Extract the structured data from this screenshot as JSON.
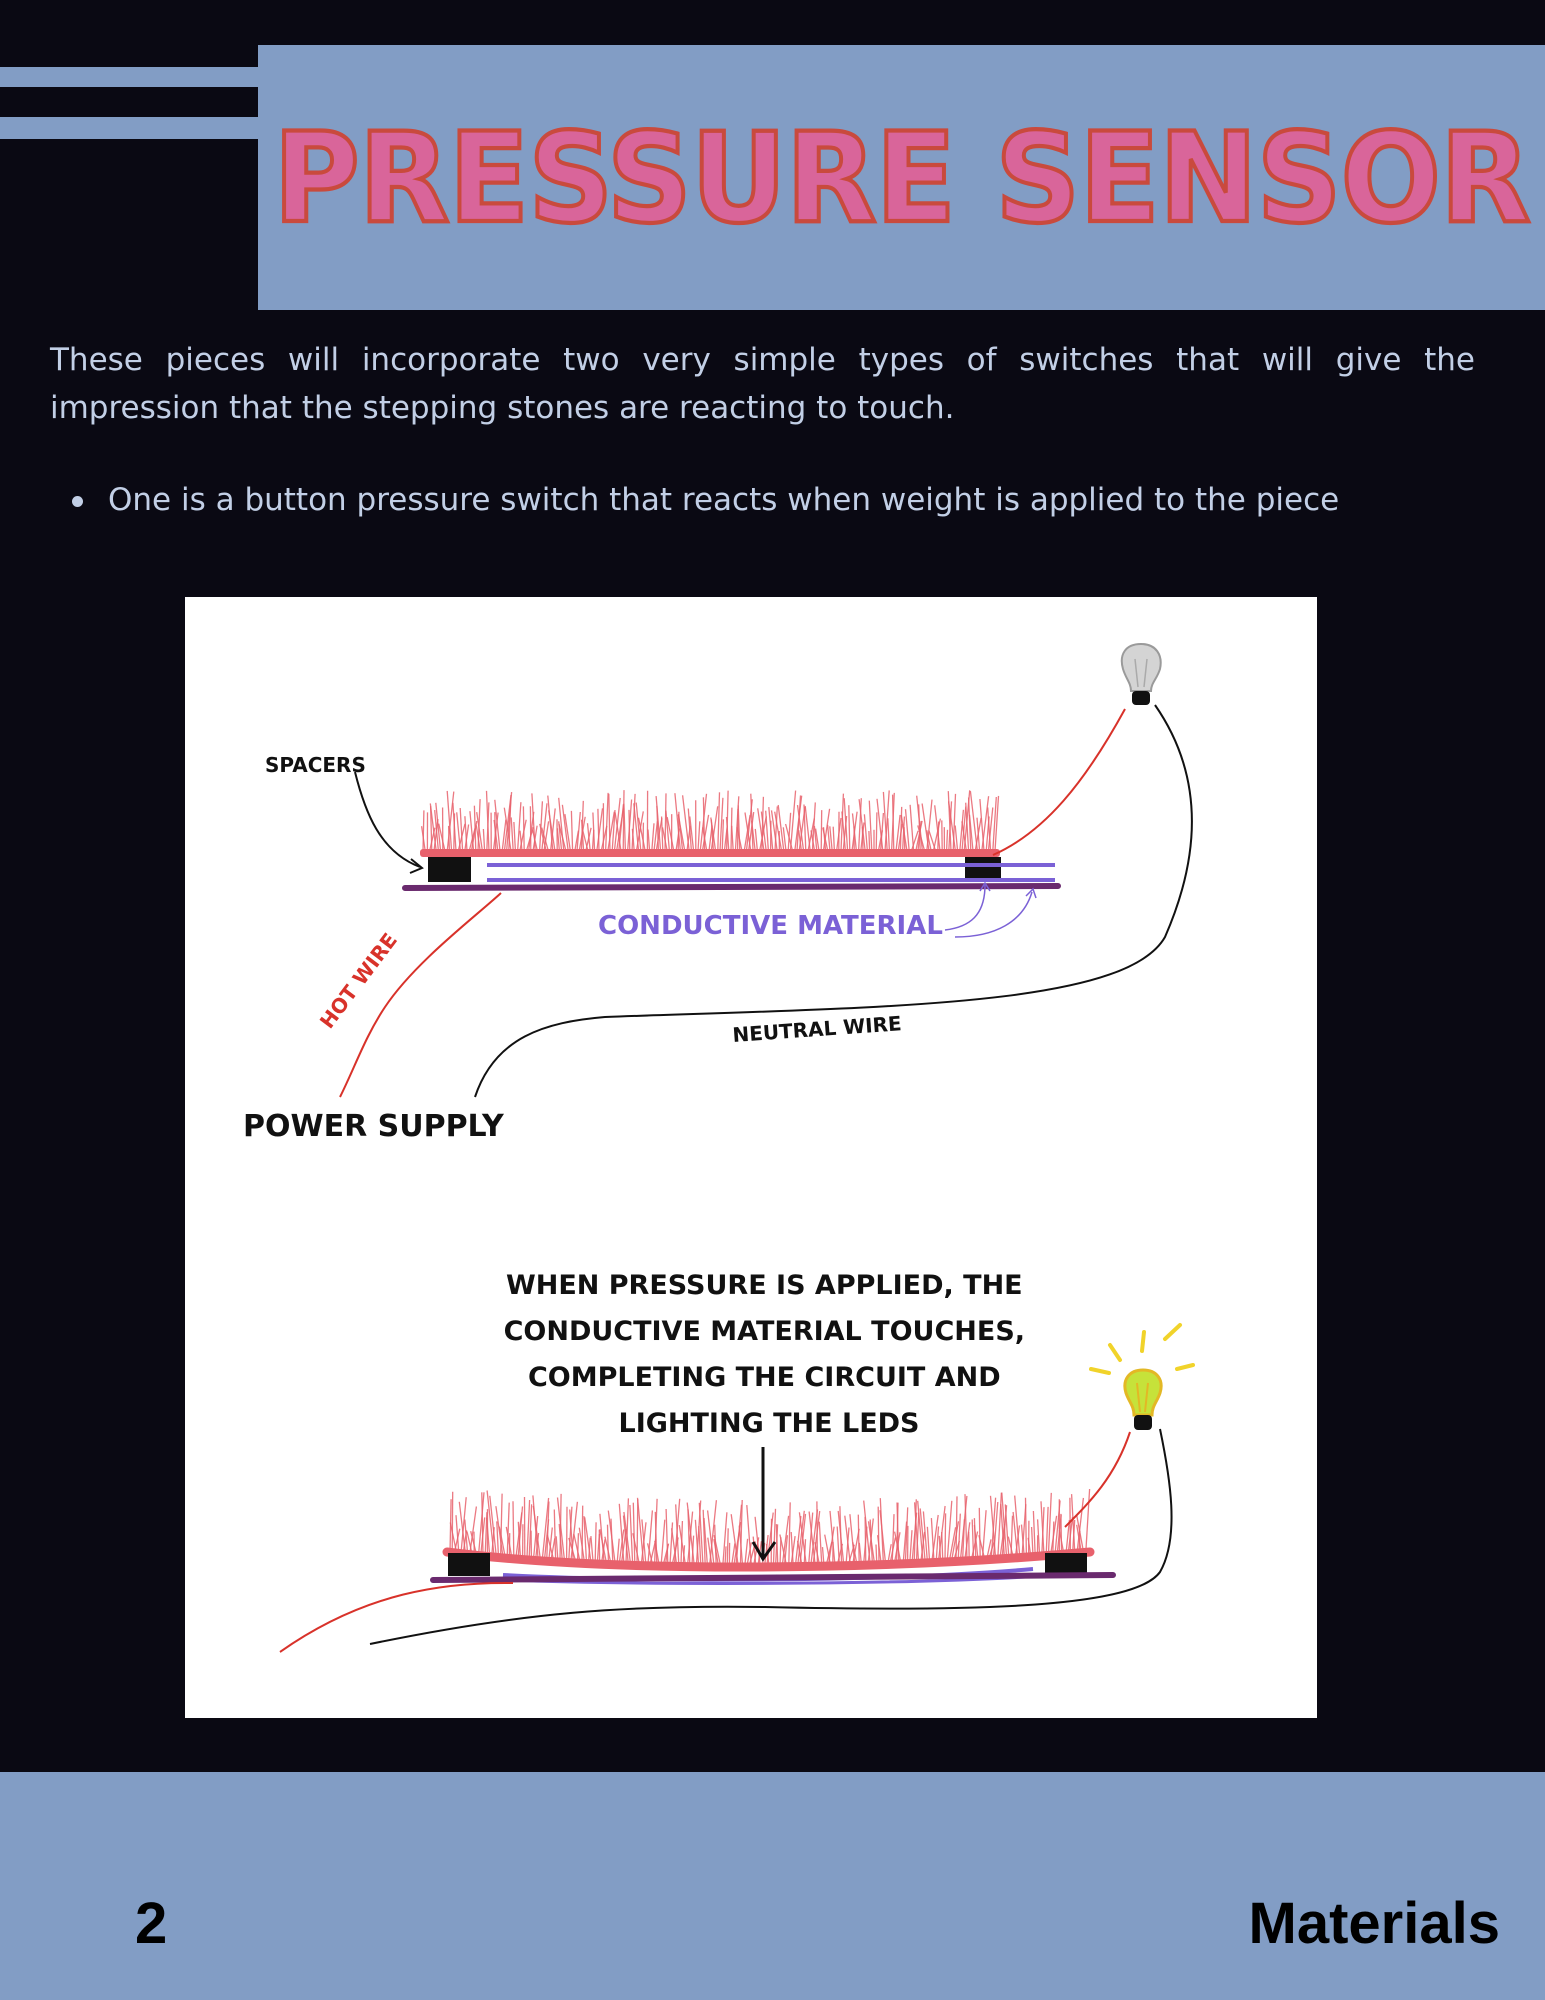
{
  "header": {
    "title": "PRESSURE SENSOR"
  },
  "intro": "These pieces will incorporate two very simple types of switches that will give the impression that the stepping stones are reacting to touch.",
  "bullets": [
    "One is a button pressure switch that reacts when weight is applied to the piece"
  ],
  "diagram": {
    "labels": {
      "spacers": "SPACERS",
      "conductive_material": "CONDUCTIVE  MATERIAL",
      "hot_wire": "HOT WIRE",
      "neutral_wire": "NEUTRAL WIRE",
      "power_supply": "POWER SUPPLY",
      "pressed_caption": [
        "WHEN PRESSURE IS APPLIED, THE",
        "CONDUCTIVE MATERIAL TOUCHES,",
        "COMPLETING THE CIRCUIT AND",
        "LIGHTING THE LEDS"
      ]
    },
    "colors": {
      "grass": "#e8616c",
      "conductive": "#7b61d6",
      "hot_wire": "#d8322a",
      "neutral_wire": "#111111",
      "base": "#6a2a6e",
      "bulb_off": "#d4d4d4",
      "bulb_on": "#c6e23a",
      "rays": "#f1d32a"
    }
  },
  "footer": {
    "page_number": "2",
    "section": "Materials"
  },
  "colors": {
    "background": "#0a0913",
    "panel": "#829dc5",
    "title_fill": "#d9659a",
    "title_outline": "#c94a3d",
    "body_text": "#c2cfe6"
  }
}
